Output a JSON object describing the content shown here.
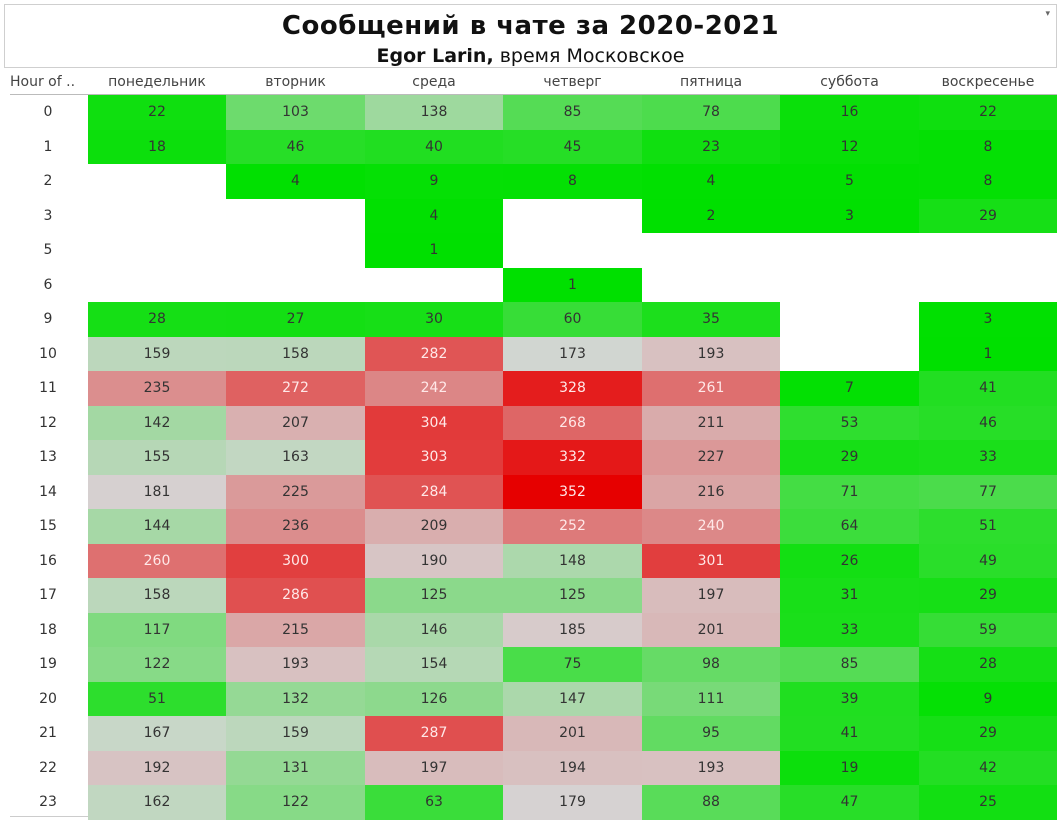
{
  "header": {
    "title": "Сообщений в чате за 2020-2021",
    "author": "Egor Larin,",
    "subtitle_rest": " время Московское",
    "dropdown_icon": "▾"
  },
  "colors": {
    "low": "#00e000",
    "mid": "#d6d6d6",
    "high": "#e60000"
  },
  "chart_data": {
    "type": "heatmap",
    "title": "Сообщений в чате за 2020-2021",
    "subtitle": "Egor Larin, время Московское",
    "row_header": "Hour of ..",
    "columns": [
      "понедельник",
      "вторник",
      "среда",
      "четверг",
      "пятница",
      "суббота",
      "воскресенье"
    ],
    "rows": [
      "0",
      "1",
      "2",
      "3",
      "5",
      "6",
      "9",
      "10",
      "11",
      "12",
      "13",
      "14",
      "15",
      "16",
      "17",
      "18",
      "19",
      "20",
      "21",
      "22",
      "23"
    ],
    "values": [
      [
        22,
        103,
        138,
        85,
        78,
        16,
        22
      ],
      [
        18,
        46,
        40,
        45,
        23,
        12,
        8
      ],
      [
        null,
        4,
        9,
        8,
        4,
        5,
        8
      ],
      [
        null,
        null,
        4,
        null,
        2,
        3,
        29
      ],
      [
        null,
        null,
        1,
        null,
        null,
        null,
        null
      ],
      [
        null,
        null,
        null,
        1,
        null,
        null,
        null
      ],
      [
        28,
        27,
        30,
        60,
        35,
        null,
        3
      ],
      [
        159,
        158,
        282,
        173,
        193,
        null,
        1
      ],
      [
        235,
        272,
        242,
        328,
        261,
        7,
        41
      ],
      [
        142,
        207,
        304,
        268,
        211,
        53,
        46
      ],
      [
        155,
        163,
        303,
        332,
        227,
        29,
        33
      ],
      [
        181,
        225,
        284,
        352,
        216,
        71,
        77
      ],
      [
        144,
        236,
        209,
        252,
        240,
        64,
        51
      ],
      [
        260,
        300,
        190,
        148,
        301,
        26,
        49
      ],
      [
        158,
        286,
        125,
        125,
        197,
        31,
        29
      ],
      [
        117,
        215,
        146,
        185,
        201,
        33,
        59
      ],
      [
        122,
        193,
        154,
        75,
        98,
        85,
        28
      ],
      [
        51,
        132,
        126,
        147,
        111,
        39,
        9
      ],
      [
        167,
        159,
        287,
        201,
        95,
        41,
        29
      ],
      [
        192,
        131,
        197,
        194,
        193,
        19,
        42
      ],
      [
        162,
        122,
        63,
        179,
        88,
        47,
        25
      ]
    ],
    "value_range": [
      1,
      352
    ],
    "color_midpoint": 176,
    "legend": "none"
  }
}
